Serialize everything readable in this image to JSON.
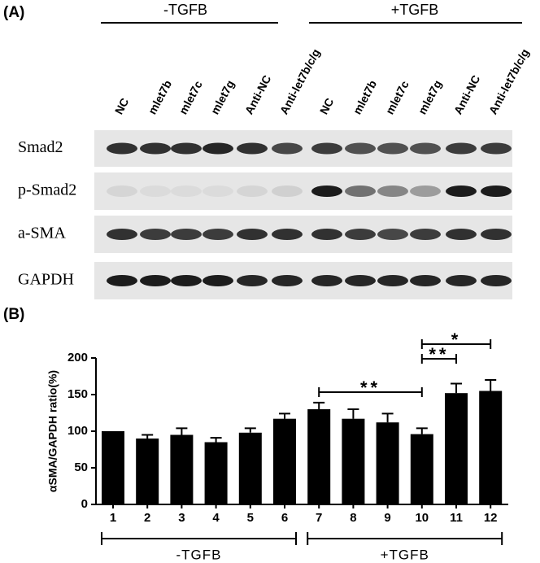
{
  "blot": {
    "panel_label": "(A)",
    "groups": [
      "-TGFB",
      "+TGFB"
    ],
    "lanes": [
      "NC",
      "mlet7b",
      "mlet7c",
      "mlet7g",
      "Anti-NC",
      "Anti-let7b/c/g",
      "NC",
      "mlet7b",
      "mlet7c",
      "mlet7g",
      "Anti-NC",
      "Anti-let7b/c/g"
    ],
    "rows": [
      "Smad2",
      "p-Smad2",
      "a-SMA",
      "GAPDH"
    ]
  },
  "chart_data": {
    "type": "bar",
    "panel_label": "(B)",
    "y_label": "αSMA/GAPDH ratio(%)",
    "categories": [
      "1",
      "2",
      "3",
      "4",
      "5",
      "6",
      "7",
      "8",
      "9",
      "10",
      "11",
      "12"
    ],
    "values": [
      100,
      90,
      95,
      85,
      98,
      117,
      130,
      117,
      112,
      96,
      152,
      155
    ],
    "errors": [
      0,
      5,
      9,
      6,
      6,
      7,
      9,
      13,
      12,
      8,
      13,
      15
    ],
    "color": "#000000",
    "ylim": [
      0,
      200
    ],
    "yticks": [
      0,
      50,
      100,
      150,
      200
    ],
    "annotations": [
      "**",
      "**",
      "*"
    ],
    "group_labels": [
      "-TGFB",
      "+TGFB"
    ]
  }
}
